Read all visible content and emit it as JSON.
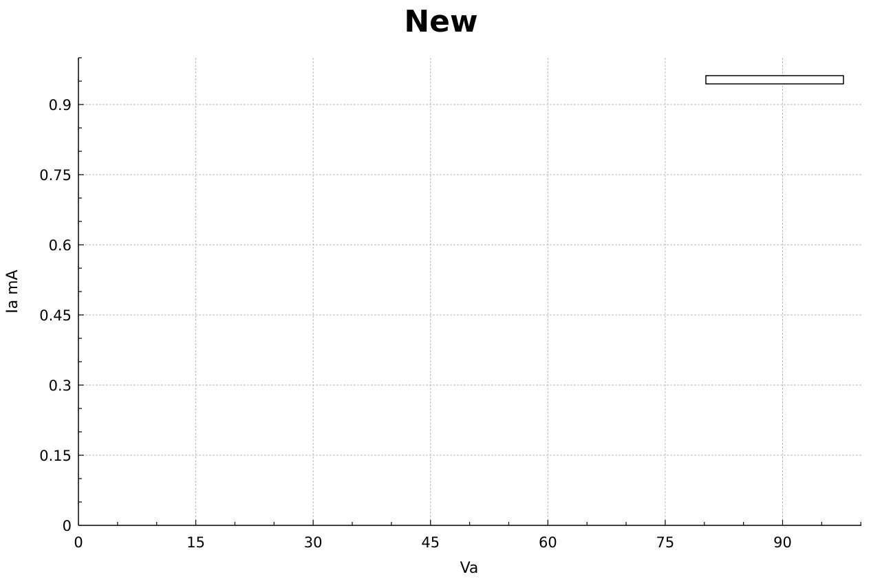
{
  "chart_data": {
    "type": "line",
    "title": "New",
    "xlabel": "Va",
    "ylabel": "Ia mA",
    "xlim": [
      0,
      100
    ],
    "ylim": [
      0,
      1.0
    ],
    "x_ticks": [
      0,
      15,
      30,
      45,
      60,
      75,
      90
    ],
    "x_tick_labels": [
      "0",
      "15",
      "30",
      "45",
      "60",
      "75",
      "90"
    ],
    "y_ticks": [
      0,
      0.15,
      0.3,
      0.45,
      0.6,
      0.75,
      0.9
    ],
    "y_tick_labels": [
      "0",
      "0.15",
      "0.3",
      "0.45",
      "0.6",
      "0.75",
      "0.9"
    ],
    "x_minor_step": 5,
    "y_minor_step": 0.05,
    "grid": true,
    "legend_position": "top-right",
    "series": []
  }
}
